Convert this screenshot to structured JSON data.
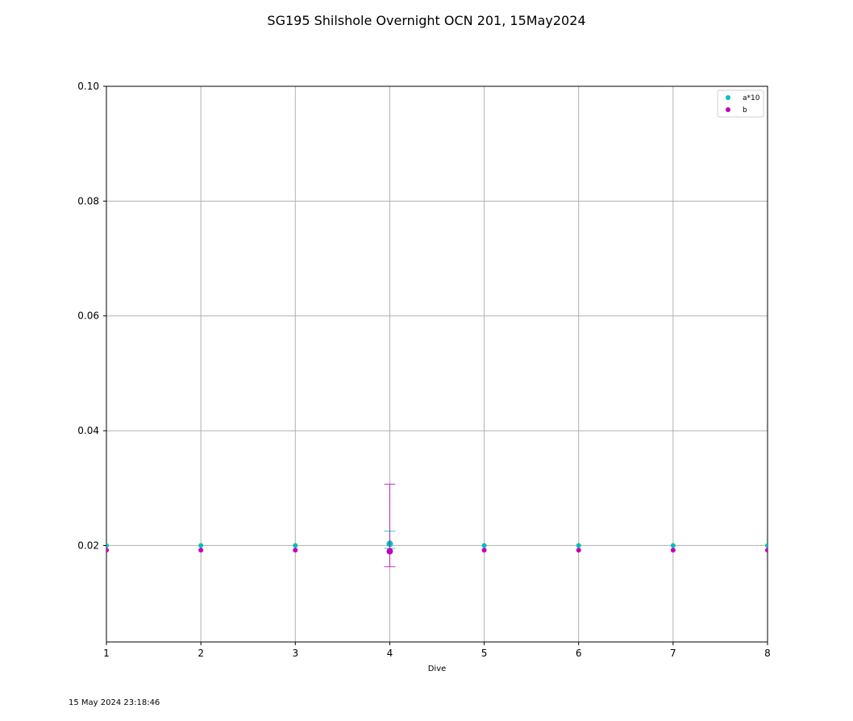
{
  "chart_data": {
    "type": "scatter",
    "title": "SG195 Shilshole Overnight OCN 201, 15May2024",
    "xlabel": "Dive",
    "ylabel": "",
    "xlim": [
      1,
      8
    ],
    "ylim": [
      0.0032,
      0.1
    ],
    "x_ticks": [
      "1",
      "2",
      "3",
      "4",
      "5",
      "6",
      "7",
      "8"
    ],
    "y_ticks": [
      "0.02",
      "0.04",
      "0.06",
      "0.08",
      "0.10"
    ],
    "y_tick_values": [
      0.02,
      0.04,
      0.06,
      0.08,
      0.1
    ],
    "grid": true,
    "legend_position": "top-right",
    "series": [
      {
        "name": "a*10",
        "color": "#00bfbf",
        "x": [
          1,
          2,
          3,
          4,
          5,
          6,
          7,
          8
        ],
        "y": [
          0.02,
          0.02,
          0.02,
          0.0203,
          0.02,
          0.02,
          0.02,
          0.02
        ],
        "error_bars": [
          {
            "x": 4,
            "low": 0.0195,
            "high": 0.0225
          }
        ]
      },
      {
        "name": "b",
        "color": "#bf00bf",
        "x": [
          1,
          2,
          3,
          4,
          5,
          6,
          7,
          8
        ],
        "y": [
          0.0192,
          0.0192,
          0.0192,
          0.019,
          0.0192,
          0.0192,
          0.0192,
          0.0192
        ],
        "error_bars": [
          {
            "x": 4,
            "low": 0.0163,
            "high": 0.0307
          }
        ]
      }
    ]
  },
  "footer": {
    "timestamp": "15 May 2024 23:18:46"
  }
}
